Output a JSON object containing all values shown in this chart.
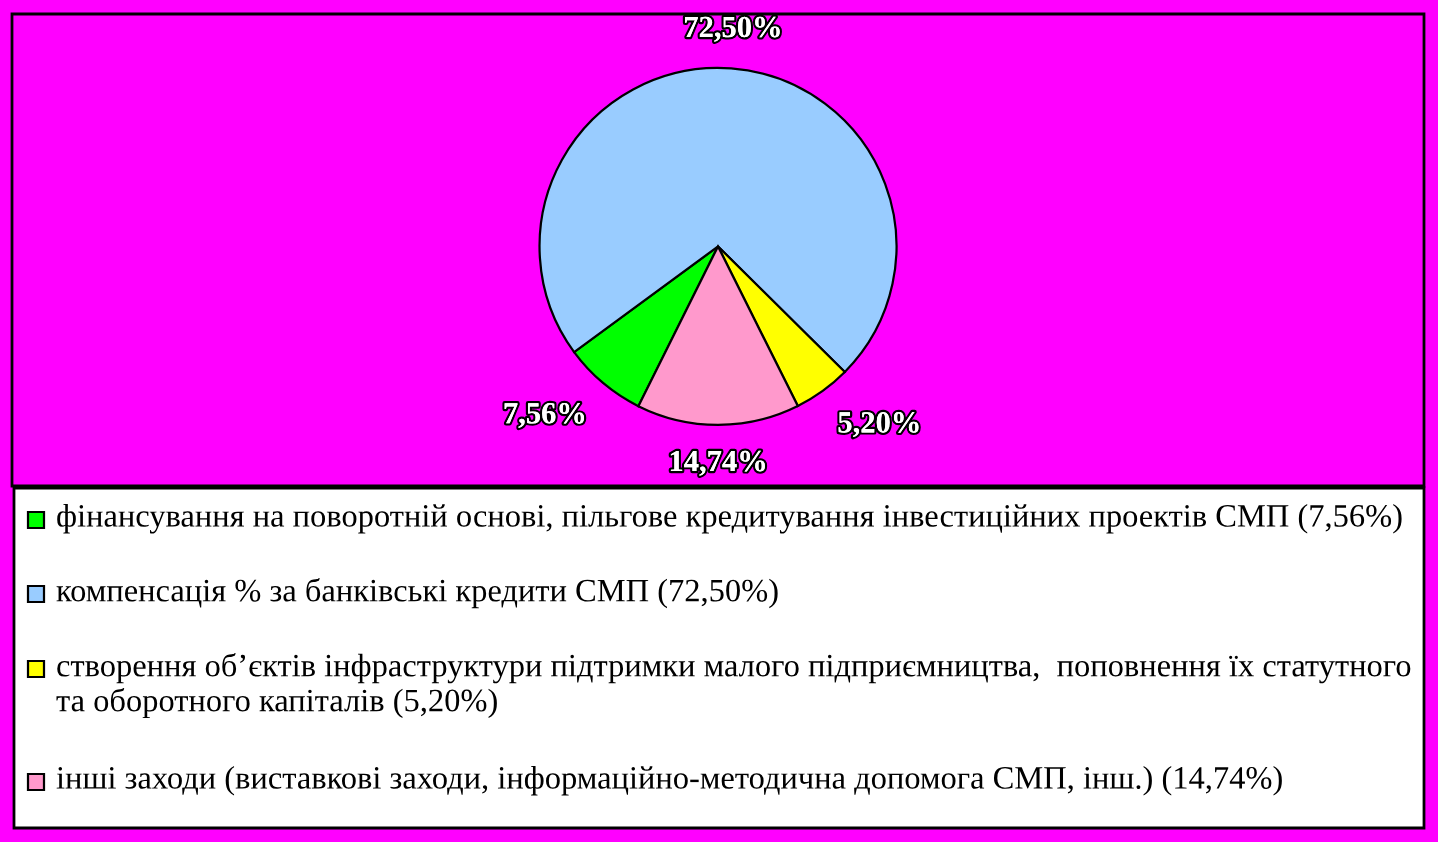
{
  "chart_data": {
    "type": "pie",
    "categories": [
      "фінансування на поворотній основі, пільгове кредитування інвестиційних проектів СМП (7,56%)",
      "компенсація % за банківські кредити СМП (72,50%)",
      "створення об’єктів інфраструктури підтримки малого підприємництва,  поповнення їх статутного та оборотного капіталів (5,20%)",
      "інші заходи (виставкові заходи, інформаційно-методична допомога СМП, інш.) (14,74%)"
    ],
    "values": [
      7.56,
      72.5,
      5.2,
      14.74
    ],
    "colors": [
      "#00ff00",
      "#99ccff",
      "#ffff00",
      "#ff99cc"
    ],
    "value_labels": [
      "7,56%",
      "72,50%",
      "5,20%",
      "14,74%"
    ],
    "legend": "bottom"
  }
}
